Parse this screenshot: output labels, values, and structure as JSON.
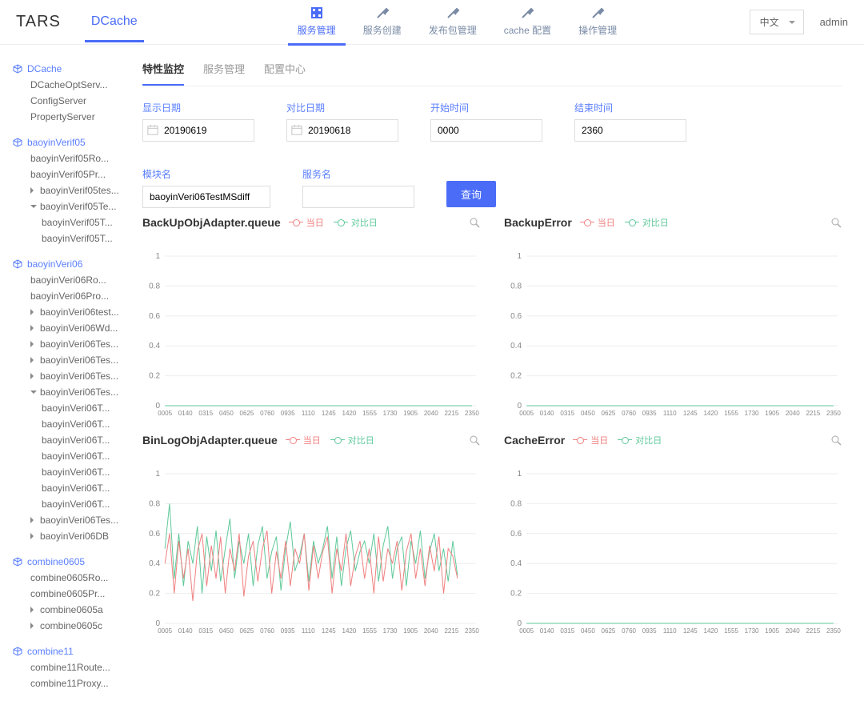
{
  "header": {
    "logo": "TARS",
    "app": "DCache",
    "nav": [
      {
        "label": "服务管理",
        "active": true
      },
      {
        "label": "服务创建",
        "active": false
      },
      {
        "label": "发布包管理",
        "active": false
      },
      {
        "label": "cache 配置",
        "active": false
      },
      {
        "label": "操作管理",
        "active": false
      }
    ],
    "lang": "中文",
    "user": "admin"
  },
  "sidebar": [
    {
      "name": "DCache",
      "children": [
        {
          "name": "DCacheOptServ..."
        },
        {
          "name": "ConfigServer"
        },
        {
          "name": "PropertyServer"
        }
      ]
    },
    {
      "name": "baoyinVerif05",
      "children": [
        {
          "name": "baoyinVerif05Ro..."
        },
        {
          "name": "baoyinVerif05Pr..."
        },
        {
          "name": "baoyinVerif05tes...",
          "caret": true
        },
        {
          "name": "baoyinVerif05Te...",
          "caret": true,
          "open": true,
          "children": [
            {
              "name": "baoyinVerif05T..."
            },
            {
              "name": "baoyinVerif05T..."
            }
          ]
        }
      ]
    },
    {
      "name": "baoyinVeri06",
      "children": [
        {
          "name": "baoyinVeri06Ro..."
        },
        {
          "name": "baoyinVeri06Pro..."
        },
        {
          "name": "baoyinVeri06test...",
          "caret": true
        },
        {
          "name": "baoyinVeri06Wd...",
          "caret": true
        },
        {
          "name": "baoyinVeri06Tes...",
          "caret": true
        },
        {
          "name": "baoyinVeri06Tes...",
          "caret": true
        },
        {
          "name": "baoyinVeri06Tes...",
          "caret": true
        },
        {
          "name": "baoyinVeri06Tes...",
          "caret": true,
          "open": true,
          "children": [
            {
              "name": "baoyinVeri06T..."
            },
            {
              "name": "baoyinVeri06T..."
            },
            {
              "name": "baoyinVeri06T..."
            },
            {
              "name": "baoyinVeri06T..."
            },
            {
              "name": "baoyinVeri06T..."
            },
            {
              "name": "baoyinVeri06T..."
            },
            {
              "name": "baoyinVeri06T..."
            }
          ]
        },
        {
          "name": "baoyinVeri06Tes...",
          "caret": true
        },
        {
          "name": "baoyinVeri06DB",
          "caret": true
        }
      ]
    },
    {
      "name": "combine0605",
      "children": [
        {
          "name": "combine0605Ro..."
        },
        {
          "name": "combine0605Pr..."
        },
        {
          "name": "combine0605a",
          "caret": true
        },
        {
          "name": "combine0605c",
          "caret": true
        }
      ]
    },
    {
      "name": "combine11",
      "children": [
        {
          "name": "combine11Route..."
        },
        {
          "name": "combine11Proxy..."
        }
      ]
    }
  ],
  "tabs": [
    {
      "label": "特性监控",
      "active": true
    },
    {
      "label": "服务管理",
      "active": false
    },
    {
      "label": "配置中心",
      "active": false
    }
  ],
  "filters": {
    "display_date": {
      "label": "显示日期",
      "value": "20190619"
    },
    "compare_date": {
      "label": "对比日期",
      "value": "20190618"
    },
    "start_time": {
      "label": "开始时间",
      "value": "0000"
    },
    "end_time": {
      "label": "结束时间",
      "value": "2360"
    },
    "module": {
      "label": "模块名",
      "value": "baoyinVeri06TestMSdiff"
    },
    "service": {
      "label": "服务名",
      "value": ""
    },
    "query_btn": "查询"
  },
  "chart_common": {
    "legend_today": "当日",
    "legend_compare": "对比日",
    "color_today": "#f08080",
    "color_compare": "#5fc99a",
    "x_ticks": [
      "0005",
      "0140",
      "0315",
      "0450",
      "0625",
      "0760",
      "0935",
      "1110",
      "1245",
      "1420",
      "1555",
      "1730",
      "1905",
      "2040",
      "2215",
      "2350"
    ],
    "y_ticks": [
      "0",
      "0.2",
      "0.4",
      "0.6",
      "0.8",
      "1"
    ],
    "ylim": [
      0,
      1
    ],
    "grid_color": "#eeeeee",
    "background": "#ffffff"
  },
  "charts": [
    {
      "title": "BackUpObjAdapter.queue",
      "series_today": [],
      "series_compare": [],
      "flat": true
    },
    {
      "title": "BackupError",
      "series_today": [],
      "series_compare": [],
      "flat": true
    },
    {
      "title": "BinLogObjAdapter.queue",
      "series_today": [
        0.4,
        0.6,
        0.2,
        0.55,
        0.3,
        0.5,
        0.15,
        0.48,
        0.6,
        0.25,
        0.52,
        0.3,
        0.58,
        0.2,
        0.5,
        0.35,
        0.6,
        0.18,
        0.45,
        0.55,
        0.28,
        0.5,
        0.62,
        0.2,
        0.48,
        0.3,
        0.55,
        0.25,
        0.5,
        0.4,
        0.6,
        0.22,
        0.52,
        0.3,
        0.48,
        0.58,
        0.2,
        0.5,
        0.35,
        0.6,
        0.25,
        0.45,
        0.55,
        0.3,
        0.5,
        0.2,
        0.58,
        0.28,
        0.5,
        0.4,
        0.55,
        0.22,
        0.48,
        0.6,
        0.3,
        0.5,
        0.25,
        0.52,
        0.35,
        0.58,
        0.2,
        0.5,
        0.45,
        0.3
      ],
      "series_compare": [
        0.5,
        0.8,
        0.3,
        0.6,
        0.25,
        0.55,
        0.4,
        0.65,
        0.2,
        0.58,
        0.35,
        0.62,
        0.28,
        0.5,
        0.7,
        0.3,
        0.55,
        0.4,
        0.6,
        0.25,
        0.52,
        0.65,
        0.3,
        0.48,
        0.58,
        0.22,
        0.5,
        0.68,
        0.35,
        0.45,
        0.6,
        0.28,
        0.55,
        0.4,
        0.5,
        0.65,
        0.3,
        0.58,
        0.25,
        0.5,
        0.62,
        0.35,
        0.48,
        0.55,
        0.4,
        0.6,
        0.28,
        0.52,
        0.65,
        0.3,
        0.5,
        0.58,
        0.25,
        0.55,
        0.4,
        0.62,
        0.3,
        0.48,
        0.6,
        0.35,
        0.5,
        0.28,
        0.55,
        0.32
      ]
    },
    {
      "title": "CacheError",
      "series_today": [],
      "series_compare": [],
      "flat": true
    }
  ]
}
